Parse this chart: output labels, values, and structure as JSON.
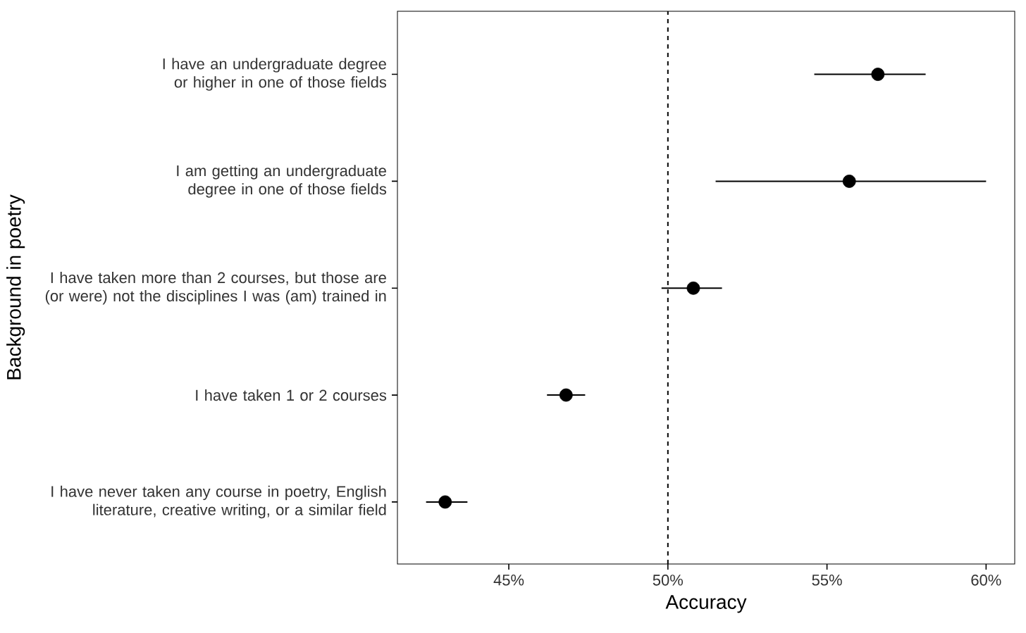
{
  "chart_data": {
    "type": "scatter",
    "orientation": "horizontal",
    "xlabel": "Accuracy",
    "ylabel": "Background in poetry",
    "categories": [
      "I have an undergraduate degree or higher in one of those fields",
      "I am getting an undergraduate degree in one of those fields",
      "I have taken more than 2 courses, but those are (or were) not the disciplines I was (am) trained in",
      "I have taken 1 or 2 courses",
      "I have never taken any course in poetry, English literature, creative writing, or a similar field"
    ],
    "values": [
      56.6,
      55.7,
      50.8,
      46.8,
      43.0
    ],
    "errors": [
      [
        54.6,
        58.1
      ],
      [
        51.5,
        60.0
      ],
      [
        49.8,
        51.7
      ],
      [
        46.2,
        47.4
      ],
      [
        42.4,
        43.7
      ]
    ],
    "color": "#000000",
    "xlim": [
      41.5,
      60.9
    ],
    "xticks": [
      {
        "value": 45,
        "label": "45%"
      },
      {
        "value": 50,
        "label": "50%"
      },
      {
        "value": 55,
        "label": "55%"
      },
      {
        "value": 60,
        "label": "60%"
      }
    ],
    "ref_lines": [
      {
        "axis": "x",
        "value": 50,
        "line_style": "dashed",
        "color": "#000000"
      }
    ]
  }
}
